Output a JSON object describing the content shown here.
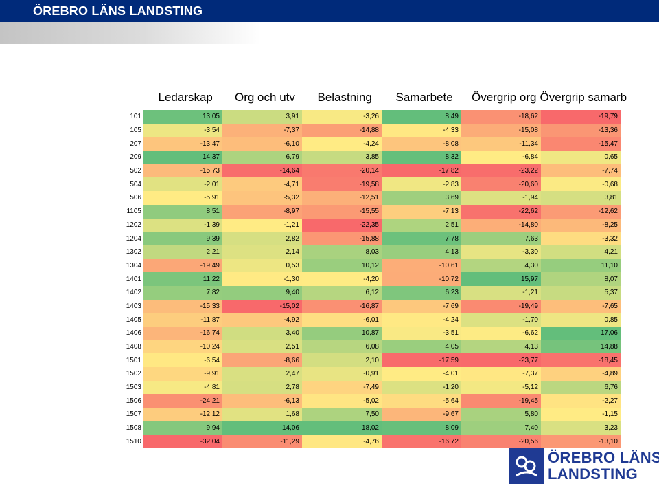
{
  "header": {
    "title": "ÖREBRO LÄNS LANDSTING"
  },
  "logo": {
    "line1": "ÖREBRO LÄNS",
    "line2": "LANDSTING"
  },
  "chart_data": {
    "type": "heatmap",
    "color_scale": {
      "low": "#f8696b",
      "mid": "#ffeb84",
      "high": "#63be7b"
    },
    "columns": [
      "Ledarskap",
      "Org och utv",
      "Belastning",
      "Samarbete",
      "Övergrip org",
      "Övergrip samarb"
    ],
    "rows": [
      {
        "label": "101",
        "values": [
          "13,05",
          "3,91",
          "-3,26",
          "8,49",
          "-18,62",
          "-19,79"
        ]
      },
      {
        "label": "105",
        "values": [
          "-3,54",
          "-7,37",
          "-14,88",
          "-4,33",
          "-15,08",
          "-13,36"
        ]
      },
      {
        "label": "207",
        "values": [
          "-13,47",
          "-6,10",
          "-4,24",
          "-8,08",
          "-11,34",
          "-15,47"
        ]
      },
      {
        "label": "209",
        "values": [
          "14,37",
          "6,79",
          "3,85",
          "8,32",
          "-6,84",
          "0,65"
        ]
      },
      {
        "label": "502",
        "values": [
          "-15,73",
          "-14,64",
          "-20,14",
          "-17,82",
          "-23,22",
          "-7,74"
        ]
      },
      {
        "label": "504",
        "values": [
          "-2,01",
          "-4,71",
          "-19,58",
          "-2,83",
          "-20,60",
          "-0,68"
        ]
      },
      {
        "label": "506",
        "values": [
          "-5,91",
          "-5,32",
          "-12,51",
          "3,69",
          "-1,94",
          "3,81"
        ]
      },
      {
        "label": "1105",
        "values": [
          "8,51",
          "-8,97",
          "-15,55",
          "-7,13",
          "-22,62",
          "-12,62"
        ]
      },
      {
        "label": "1202",
        "values": [
          "-1,39",
          "-1,21",
          "-22,35",
          "2,51",
          "-14,80",
          "-8,25"
        ]
      },
      {
        "label": "1204",
        "values": [
          "9,39",
          "2,82",
          "-15,88",
          "7,78",
          "7,63",
          "-3,32"
        ]
      },
      {
        "label": "1302",
        "values": [
          "2,21",
          "2,14",
          "8,03",
          "4,13",
          "-3,30",
          "4,21"
        ]
      },
      {
        "label": "1304",
        "values": [
          "-19,49",
          "0,53",
          "10,12",
          "-10,61",
          "4,30",
          "11,10"
        ]
      },
      {
        "label": "1401",
        "values": [
          "11,22",
          "-1,30",
          "-4,20",
          "-10,72",
          "15,97",
          "8,07"
        ]
      },
      {
        "label": "1402",
        "values": [
          "7,82",
          "9,40",
          "6,12",
          "6,23",
          "-1,21",
          "5,37"
        ]
      },
      {
        "label": "1403",
        "values": [
          "-15,33",
          "-15,02",
          "-16,87",
          "-7,69",
          "-19,49",
          "-7,65"
        ]
      },
      {
        "label": "1405",
        "values": [
          "-11,87",
          "-4,92",
          "-6,01",
          "-4,24",
          "-1,70",
          "0,85"
        ]
      },
      {
        "label": "1406",
        "values": [
          "-16,74",
          "3,40",
          "10,87",
          "-3,51",
          "-6,62",
          "17,06"
        ]
      },
      {
        "label": "1408",
        "values": [
          "-10,24",
          "2,51",
          "6,08",
          "4,05",
          "4,13",
          "14,88"
        ]
      },
      {
        "label": "1501",
        "values": [
          "-6,54",
          "-8,66",
          "2,10",
          "-17,59",
          "-23,77",
          "-18,45"
        ]
      },
      {
        "label": "1502",
        "values": [
          "-9,91",
          "2,47",
          "-0,91",
          "-4,01",
          "-7,37",
          "-4,89"
        ]
      },
      {
        "label": "1503",
        "values": [
          "-4,81",
          "2,78",
          "-7,49",
          "-1,20",
          "-5,12",
          "6,76"
        ]
      },
      {
        "label": "1506",
        "values": [
          "-24,21",
          "-6,13",
          "-5,02",
          "-5,64",
          "-19,45",
          "-2,27"
        ]
      },
      {
        "label": "1507",
        "values": [
          "-12,12",
          "1,68",
          "7,50",
          "-9,67",
          "5,80",
          "-1,15"
        ]
      },
      {
        "label": "1508",
        "values": [
          "9,94",
          "14,06",
          "18,02",
          "8,09",
          "7,40",
          "3,23"
        ]
      },
      {
        "label": "1510",
        "values": [
          "-32,04",
          "-11,29",
          "-4,76",
          "-16,72",
          "-20,56",
          "-13,10"
        ]
      }
    ]
  }
}
